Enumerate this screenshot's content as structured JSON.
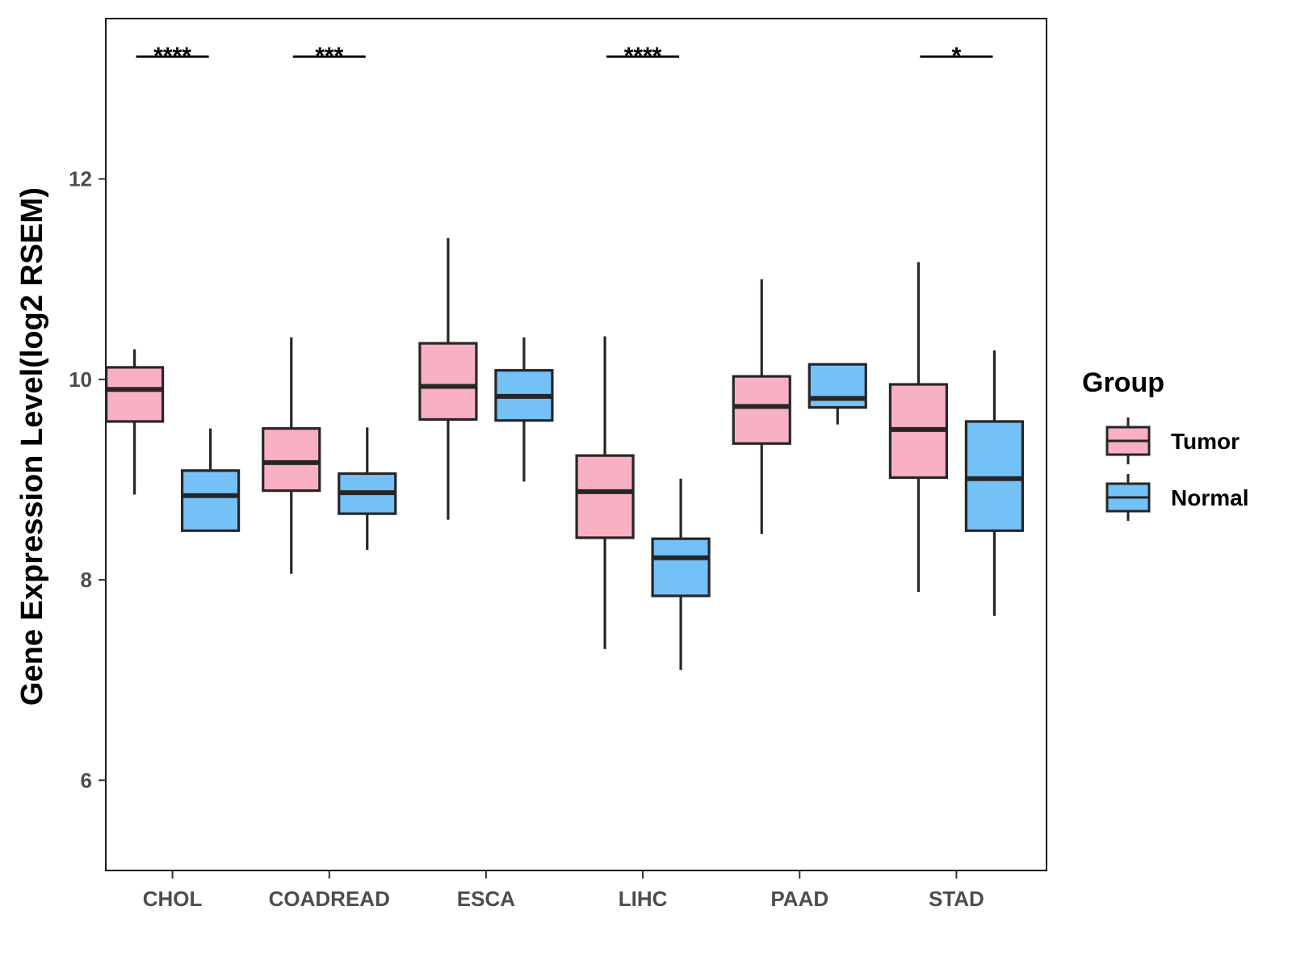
{
  "chart_data": {
    "type": "boxplot",
    "title": "",
    "xlabel": "",
    "ylabel": "Gene Expression Level(log2 RSEM)",
    "ylim": [
      5.1,
      13.6
    ],
    "y_ticks": [
      6,
      8,
      10,
      12
    ],
    "y_tick_labels": [
      "6",
      "8",
      "10",
      "12"
    ],
    "categories": [
      "CHOL",
      "COADREAD",
      "ESCA",
      "LIHC",
      "PAAD",
      "STAD"
    ],
    "legend": {
      "title": "Group",
      "position": "right",
      "entries": [
        {
          "name": "Tumor",
          "color": "#FAB0C3"
        },
        {
          "name": "Normal",
          "color": "#74C1F8"
        }
      ]
    },
    "series": [
      {
        "name": "Tumor",
        "color": "#FAB0C3",
        "boxes": [
          {
            "min": 8.85,
            "q1": 9.58,
            "median": 9.9,
            "q3": 10.12,
            "max": 10.3
          },
          {
            "min": 8.06,
            "q1": 8.89,
            "median": 9.17,
            "q3": 9.51,
            "max": 10.42
          },
          {
            "min": 8.6,
            "q1": 9.6,
            "median": 9.93,
            "q3": 10.36,
            "max": 11.41
          },
          {
            "min": 7.31,
            "q1": 8.42,
            "median": 8.88,
            "q3": 9.24,
            "max": 10.43
          },
          {
            "min": 8.46,
            "q1": 9.36,
            "median": 9.73,
            "q3": 10.03,
            "max": 11.0
          },
          {
            "min": 7.88,
            "q1": 9.02,
            "median": 9.5,
            "q3": 9.95,
            "max": 11.17
          }
        ]
      },
      {
        "name": "Normal",
        "color": "#74C1F8",
        "boxes": [
          {
            "min": 8.49,
            "q1": 8.49,
            "median": 8.84,
            "q3": 9.09,
            "max": 9.51
          },
          {
            "min": 8.3,
            "q1": 8.66,
            "median": 8.87,
            "q3": 9.06,
            "max": 9.52
          },
          {
            "min": 8.98,
            "q1": 9.59,
            "median": 9.83,
            "q3": 10.09,
            "max": 10.42
          },
          {
            "min": 7.1,
            "q1": 7.84,
            "median": 8.22,
            "q3": 8.41,
            "max": 9.01
          },
          {
            "min": 9.55,
            "q1": 9.72,
            "median": 9.81,
            "q3": 10.15,
            "max": 10.15
          },
          {
            "min": 7.64,
            "q1": 8.49,
            "median": 9.01,
            "q3": 9.58,
            "max": 10.29
          }
        ]
      }
    ],
    "significance": [
      {
        "category": "CHOL",
        "label": "****",
        "y": 13.22
      },
      {
        "category": "COADREAD",
        "label": "***",
        "y": 13.22
      },
      {
        "category": "LIHC",
        "label": "****",
        "y": 13.22
      },
      {
        "category": "STAD",
        "label": "*",
        "y": 13.22
      }
    ]
  }
}
